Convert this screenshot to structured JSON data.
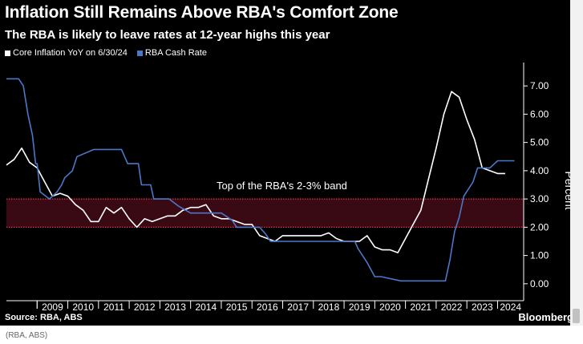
{
  "title": "Inflation Still Remains Above RBA's Comfort Zone",
  "subtitle": "The RBA is likely to leave rates at 12-year highs this year",
  "legend": [
    {
      "label": "Core Inflation YoY on 6/30/24",
      "color": "#ffffff"
    },
    {
      "label": "RBA Cash Rate",
      "color": "#4a78c8"
    }
  ],
  "source": "Source: RBA, ABS",
  "brand": "Bloomberg",
  "caption": "(RBA, ABS)",
  "chart_data": {
    "type": "line",
    "title": "Inflation Still Remains Above RBA's Comfort Zone",
    "subtitle": "The RBA is likely to leave rates at 12-year highs this year",
    "ylabel": "Percent",
    "xlabel": "",
    "ylim": [
      -0.6,
      7.6
    ],
    "xlim": [
      2008.0,
      2024.85
    ],
    "yticks": [
      "7.00",
      "6.00",
      "5.00",
      "4.00",
      "3.00",
      "2.00",
      "1.00",
      "0.00"
    ],
    "xticks": [
      "2009",
      "2010",
      "2011",
      "2012",
      "2013",
      "2014",
      "2015",
      "2016",
      "2017",
      "2018",
      "2019",
      "2020",
      "2021",
      "2022",
      "2023",
      "2024"
    ],
    "band": {
      "y0": 2.0,
      "y1": 3.0,
      "label": "Top of the RBA's 2-3% band",
      "color": "#e5304b"
    },
    "grid": false,
    "legend_position": "top-left",
    "series": [
      {
        "name": "Core Inflation YoY on 6/30/24",
        "color": "#ffffff",
        "x": [
          2008.0,
          2008.25,
          2008.5,
          2008.75,
          2009.0,
          2009.25,
          2009.5,
          2009.75,
          2010.0,
          2010.25,
          2010.5,
          2010.75,
          2011.0,
          2011.25,
          2011.5,
          2011.75,
          2012.0,
          2012.25,
          2012.5,
          2012.75,
          2013.0,
          2013.25,
          2013.5,
          2013.75,
          2014.0,
          2014.25,
          2014.5,
          2014.75,
          2015.0,
          2015.25,
          2015.5,
          2015.75,
          2016.0,
          2016.25,
          2016.5,
          2016.75,
          2017.0,
          2017.25,
          2017.5,
          2017.75,
          2018.0,
          2018.25,
          2018.5,
          2018.75,
          2019.0,
          2019.25,
          2019.5,
          2019.75,
          2020.0,
          2020.25,
          2020.5,
          2020.75,
          2021.0,
          2021.25,
          2021.5,
          2021.75,
          2022.0,
          2022.25,
          2022.5,
          2022.75,
          2023.0,
          2023.25,
          2023.5,
          2023.75,
          2024.0,
          2024.25
        ],
        "values": [
          4.2,
          4.4,
          4.8,
          4.3,
          4.1,
          3.6,
          3.1,
          3.2,
          3.1,
          2.8,
          2.6,
          2.2,
          2.2,
          2.7,
          2.5,
          2.7,
          2.3,
          2.0,
          2.3,
          2.2,
          2.3,
          2.4,
          2.4,
          2.6,
          2.7,
          2.7,
          2.8,
          2.4,
          2.3,
          2.3,
          2.2,
          2.1,
          2.1,
          1.7,
          1.6,
          1.5,
          1.7,
          1.7,
          1.7,
          1.7,
          1.7,
          1.7,
          1.8,
          1.6,
          1.5,
          1.5,
          1.5,
          1.7,
          1.3,
          1.2,
          1.2,
          1.1,
          1.6,
          2.1,
          2.6,
          3.7,
          4.8,
          6.0,
          6.8,
          6.6,
          5.8,
          5.1,
          4.1,
          4.0,
          3.9,
          3.9
        ]
      },
      {
        "name": "RBA Cash Rate",
        "color": "#4a78c8",
        "x": [
          2008.0,
          2008.4,
          2008.55,
          2008.7,
          2008.85,
          2008.95,
          2009.0,
          2009.1,
          2009.4,
          2009.65,
          2009.8,
          2009.9,
          2010.15,
          2010.3,
          2010.85,
          2011.75,
          2011.95,
          2012.3,
          2012.4,
          2012.7,
          2012.8,
          2013.3,
          2013.6,
          2014.0,
          2015.0,
          2015.35,
          2015.5,
          2016.25,
          2016.45,
          2016.6,
          2019.35,
          2019.45,
          2019.75,
          2020.0,
          2020.2,
          2020.85,
          2022.3,
          2022.45,
          2022.6,
          2022.75,
          2022.9,
          2023.05,
          2023.2,
          2023.35,
          2023.75,
          2024.0,
          2024.55
        ],
        "values": [
          7.25,
          7.25,
          7.0,
          6.0,
          5.25,
          4.25,
          4.25,
          3.25,
          3.0,
          3.25,
          3.5,
          3.75,
          4.0,
          4.5,
          4.75,
          4.75,
          4.25,
          4.25,
          3.5,
          3.5,
          3.0,
          3.0,
          2.75,
          2.5,
          2.5,
          2.25,
          2.0,
          2.0,
          1.75,
          1.5,
          1.5,
          1.25,
          0.75,
          0.25,
          0.25,
          0.1,
          0.1,
          0.85,
          1.85,
          2.35,
          3.1,
          3.35,
          3.6,
          4.1,
          4.1,
          4.35,
          4.35
        ]
      }
    ]
  }
}
